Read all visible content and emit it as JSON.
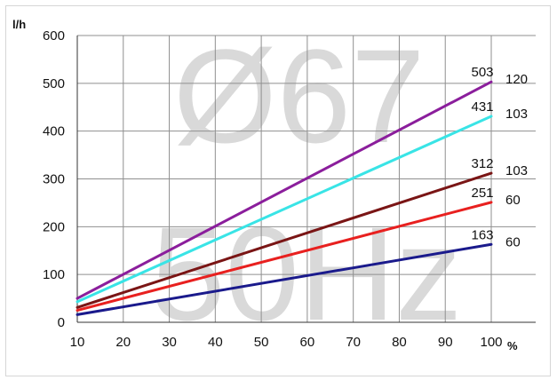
{
  "chart_data": {
    "type": "line",
    "title": "",
    "xlabel": "%",
    "ylabel": "l/h",
    "xlim": [
      10,
      100
    ],
    "ylim": [
      0,
      600
    ],
    "x_ticks": [
      10,
      20,
      30,
      40,
      50,
      60,
      70,
      80,
      90,
      100
    ],
    "y_ticks": [
      0,
      100,
      200,
      300,
      400,
      500,
      600
    ],
    "grid": true,
    "legend": "none",
    "watermark": [
      "Ø67",
      "50Hz"
    ],
    "series": [
      {
        "color": "#8B1E9C",
        "x": [
          10,
          100
        ],
        "values": [
          50,
          503
        ],
        "end_value_label": "503",
        "side_label": "120"
      },
      {
        "color": "#39E4E6",
        "x": [
          10,
          100
        ],
        "values": [
          43,
          431
        ],
        "end_value_label": "431",
        "side_label": "103"
      },
      {
        "color": "#7A1515",
        "x": [
          10,
          100
        ],
        "values": [
          31,
          312
        ],
        "end_value_label": "312",
        "side_label": "103"
      },
      {
        "color": "#E8201F",
        "x": [
          10,
          100
        ],
        "values": [
          25,
          251
        ],
        "end_value_label": "251",
        "side_label": "60"
      },
      {
        "color": "#1A1A8C",
        "x": [
          10,
          100
        ],
        "values": [
          16,
          163
        ],
        "end_value_label": "163",
        "side_label": "60"
      }
    ]
  }
}
